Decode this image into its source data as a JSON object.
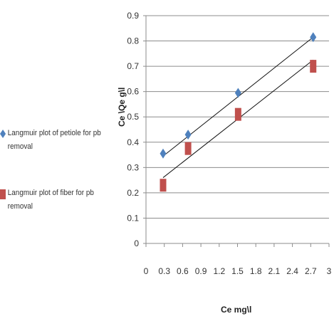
{
  "chart_data": {
    "type": "scatter",
    "xlabel": "Ce mg\\l",
    "ylabel": "Ce \\Qe       g\\l",
    "xlim": [
      0,
      3
    ],
    "ylim": [
      0,
      0.9
    ],
    "x_ticks": [
      "0",
      "0.3",
      "0.6",
      "0.9",
      "1.2",
      "1.5",
      "1.8",
      "2.1",
      "2.4",
      "2.7",
      "3"
    ],
    "y_ticks": [
      "0",
      "0.1",
      "0.2",
      "0.3",
      "0.4",
      "0.5",
      "0.6",
      "0.7",
      "0.8",
      "0.9"
    ],
    "grid": "horizontal",
    "legend_position": "left",
    "series": [
      {
        "name": "Langmuir plot of petiole for pb removal",
        "marker": "diamond",
        "color": "#4f81bd",
        "points": [
          [
            0.28,
            0.355
          ],
          [
            0.69,
            0.43
          ],
          [
            1.51,
            0.595
          ],
          [
            2.74,
            0.815
          ]
        ],
        "trendline": [
          [
            0.28,
            0.345
          ],
          [
            2.74,
            0.815
          ]
        ]
      },
      {
        "name": "Langmuir plot of fiber for pb removal",
        "marker": "square",
        "color": "#c0504d",
        "points": [
          [
            0.28,
            0.23
          ],
          [
            0.69,
            0.375
          ],
          [
            1.51,
            0.51
          ],
          [
            2.74,
            0.7
          ]
        ],
        "trendline": [
          [
            0.28,
            0.26
          ],
          [
            2.74,
            0.725
          ]
        ]
      }
    ]
  }
}
